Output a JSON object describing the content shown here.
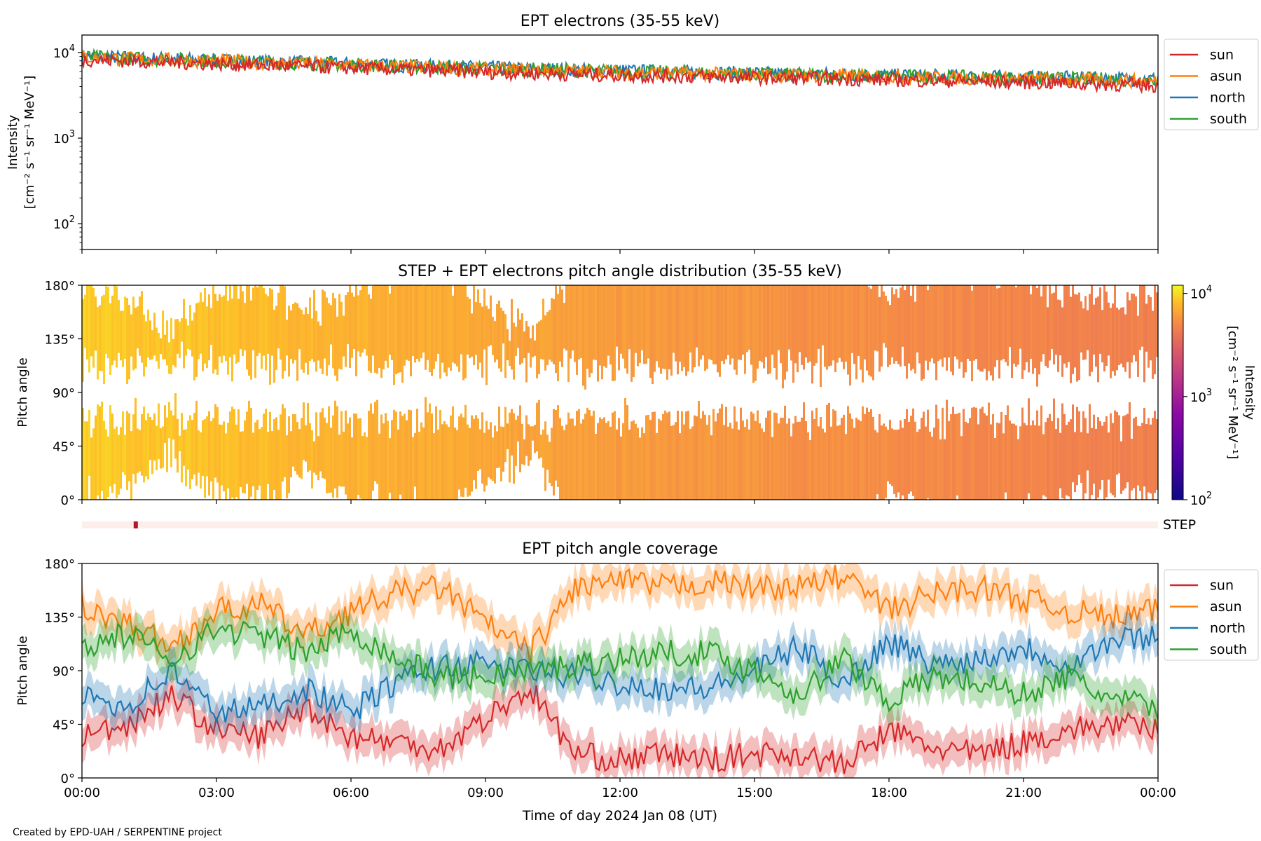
{
  "footer_credit": "Created by EPD-UAH / SERPENTINE project",
  "colors": {
    "sun": "#d62728",
    "asun": "#ff7f0e",
    "north": "#1f77b4",
    "south": "#2ca02c",
    "step_strip": "#fdeeea",
    "step_mark": "#b2182b"
  },
  "x_axis": {
    "ticks": [
      "00:00",
      "03:00",
      "06:00",
      "09:00",
      "12:00",
      "15:00",
      "18:00",
      "21:00",
      "00:00"
    ],
    "tick_hours": [
      0,
      3,
      6,
      9,
      12,
      15,
      18,
      21,
      24
    ],
    "range_hours": [
      0,
      24
    ],
    "label": "Time of day 2024 Jan 08 (UT)"
  },
  "chart_data": [
    {
      "type": "line",
      "title": "EPT electrons (35-55 keV)",
      "ylabel_line1": "Intensity",
      "ylabel_line2": "[cm⁻² s⁻¹ sr⁻¹ MeV⁻¹]",
      "yscale": "log",
      "ylim": [
        50,
        16000
      ],
      "ytick_values": [
        100,
        1000,
        10000
      ],
      "ytick_base": [
        "10",
        "10",
        "10"
      ],
      "ytick_exp": [
        "2",
        "3",
        "4"
      ],
      "legend_position": "outside-right-top",
      "series": [
        {
          "name": "sun",
          "color_key": "sun",
          "x_hours": [
            0,
            3,
            6,
            9,
            12,
            15,
            18,
            21,
            24
          ],
          "values": [
            8300,
            7400,
            6600,
            5900,
            5400,
            5100,
            4800,
            4500,
            4100
          ]
        },
        {
          "name": "asun",
          "color_key": "asun",
          "x_hours": [
            0,
            3,
            6,
            9,
            12,
            15,
            18,
            21,
            24
          ],
          "values": [
            8800,
            7900,
            7100,
            6400,
            5900,
            5500,
            5200,
            4900,
            4600
          ]
        },
        {
          "name": "north",
          "color_key": "north",
          "x_hours": [
            0,
            3,
            6,
            9,
            12,
            15,
            18,
            21,
            24
          ],
          "values": [
            9000,
            8100,
            7300,
            6600,
            6100,
            5700,
            5400,
            5100,
            4900
          ]
        },
        {
          "name": "south",
          "color_key": "south",
          "x_hours": [
            0,
            3,
            6,
            9,
            12,
            15,
            18,
            21,
            24
          ],
          "values": [
            8900,
            8000,
            7200,
            6500,
            6000,
            5600,
            5300,
            5000,
            4800
          ]
        }
      ]
    },
    {
      "type": "heatmap",
      "title": "STEP + EPT electrons pitch angle distribution (35-55 keV)",
      "ylabel": "Pitch angle",
      "ylim": [
        0,
        180
      ],
      "yticks": [
        "0°",
        "45°",
        "90°",
        "135°",
        "180°"
      ],
      "ytick_values": [
        0,
        45,
        90,
        135,
        180
      ],
      "colorbar": {
        "label_line1": "Intensity",
        "label_line2": "[cm⁻² s⁻¹ sr⁻¹ MeV⁻¹]",
        "scale": "log",
        "range": [
          100,
          12000
        ],
        "ytick_values": [
          100,
          1000,
          10000
        ],
        "ytick_base": [
          "10",
          "10",
          "10"
        ],
        "ytick_exp": [
          "2",
          "3",
          "4"
        ],
        "colormap": "plasma"
      },
      "intensity_trend": {
        "x_hours": [
          0,
          12,
          24
        ],
        "values": [
          9000,
          6000,
          4500
        ]
      }
    },
    {
      "type": "line",
      "title": "EPT pitch angle coverage",
      "ylabel": "Pitch angle",
      "ylim": [
        0,
        180
      ],
      "yticks": [
        "0°",
        "45°",
        "90°",
        "135°",
        "180°"
      ],
      "ytick_values": [
        0,
        45,
        90,
        135,
        180
      ],
      "step_label": "STEP",
      "step_mark_hour": 1.2,
      "legend_position": "outside-right-top",
      "series": [
        {
          "name": "sun",
          "color_key": "sun",
          "x_hours": [
            0,
            1,
            2,
            3,
            4,
            5,
            6,
            7,
            8,
            9,
            10,
            11,
            12,
            13,
            14,
            15,
            16,
            17,
            18,
            19,
            20,
            21,
            22,
            23,
            24
          ],
          "values": [
            35,
            45,
            70,
            40,
            35,
            60,
            35,
            30,
            25,
            50,
            75,
            20,
            15,
            20,
            15,
            20,
            20,
            10,
            40,
            25,
            20,
            30,
            40,
            45,
            40
          ]
        },
        {
          "name": "asun",
          "color_key": "asun",
          "x_hours": [
            0,
            1,
            2,
            3,
            4,
            5,
            6,
            7,
            8,
            9,
            10,
            11,
            12,
            13,
            14,
            15,
            16,
            17,
            18,
            19,
            20,
            21,
            22,
            23,
            24
          ],
          "values": [
            145,
            130,
            110,
            140,
            145,
            120,
            140,
            155,
            160,
            130,
            105,
            160,
            165,
            160,
            165,
            160,
            160,
            170,
            140,
            155,
            160,
            150,
            140,
            135,
            140
          ]
        },
        {
          "name": "north",
          "color_key": "north",
          "x_hours": [
            0,
            1,
            2,
            3,
            4,
            5,
            6,
            7,
            8,
            9,
            10,
            11,
            12,
            13,
            14,
            15,
            16,
            17,
            18,
            19,
            20,
            21,
            22,
            23,
            24
          ],
          "values": [
            70,
            60,
            90,
            55,
            60,
            75,
            55,
            80,
            95,
            95,
            90,
            85,
            80,
            75,
            75,
            90,
            110,
            80,
            115,
            95,
            100,
            110,
            95,
            115,
            120
          ]
        },
        {
          "name": "south",
          "color_key": "south",
          "x_hours": [
            0,
            1,
            2,
            3,
            4,
            5,
            6,
            7,
            8,
            9,
            10,
            11,
            12,
            13,
            14,
            15,
            16,
            17,
            18,
            19,
            20,
            21,
            22,
            23,
            24
          ],
          "values": [
            110,
            120,
            100,
            125,
            120,
            105,
            125,
            100,
            85,
            85,
            90,
            95,
            100,
            105,
            105,
            90,
            70,
            100,
            65,
            85,
            80,
            70,
            85,
            65,
            60
          ]
        }
      ]
    }
  ]
}
